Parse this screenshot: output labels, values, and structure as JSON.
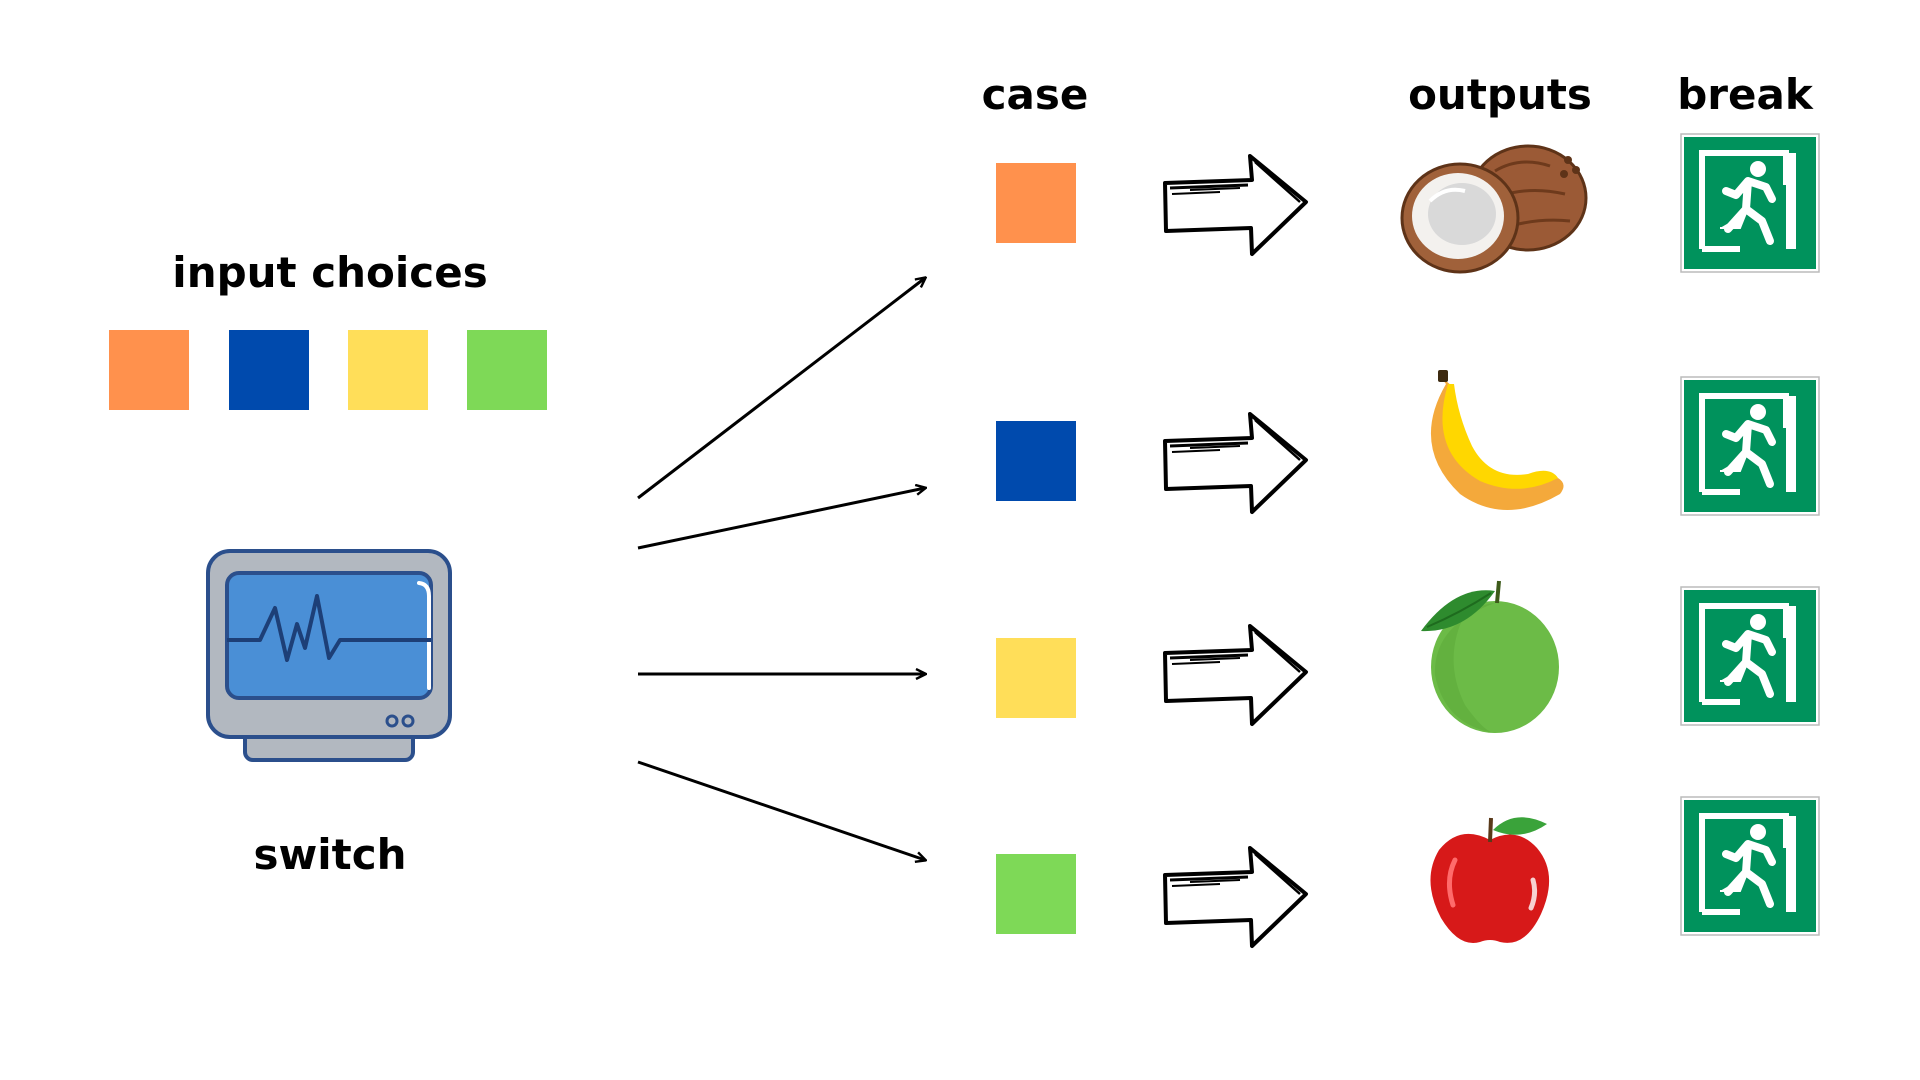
{
  "labels": {
    "input_choices": "input choices",
    "switch": "switch",
    "case": "case",
    "outputs": "outputs",
    "break": "break"
  },
  "colors": {
    "orange": "#ff914d",
    "blue": "#004aad",
    "yellow": "#ffde59",
    "green": "#7ed957",
    "exit_green": "#00925c"
  },
  "input_choices": [
    "orange",
    "blue",
    "yellow",
    "green"
  ],
  "cases": [
    {
      "color": "orange",
      "output": "coconut-icon",
      "break": "exit-sign-icon"
    },
    {
      "color": "blue",
      "output": "banana-icon",
      "break": "exit-sign-icon"
    },
    {
      "color": "yellow",
      "output": "guava-icon",
      "break": "exit-sign-icon"
    },
    {
      "color": "green",
      "output": "apple-icon",
      "break": "exit-sign-icon"
    }
  ]
}
